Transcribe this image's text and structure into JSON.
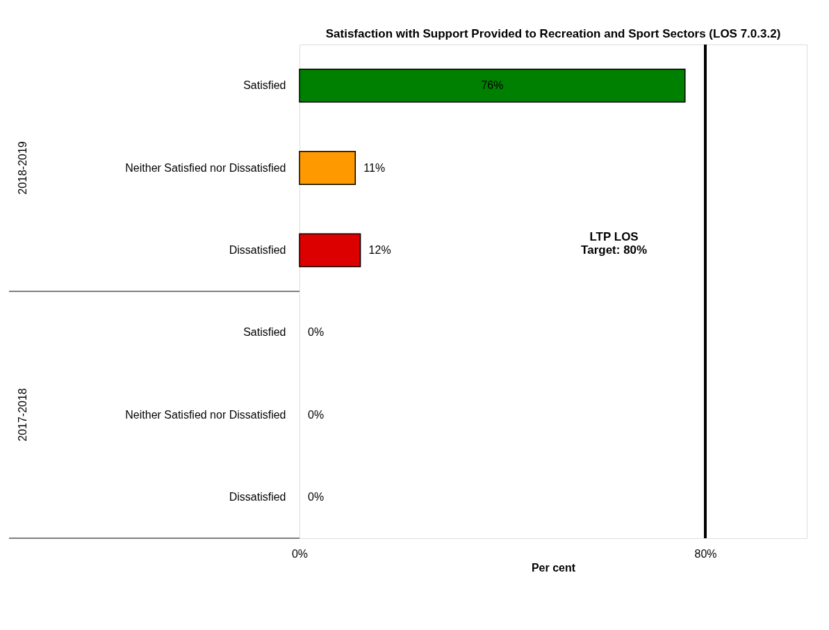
{
  "chart_data": {
    "type": "bar",
    "orientation": "horizontal",
    "title": "Satisfaction with Support Provided to Recreation and Sport Sectors (LOS 7.0.3.2)",
    "xlabel": "Per cent",
    "categories": [
      "Satisfied",
      "Neither Satisfied nor Dissatisfied",
      "Dissatisfied",
      "Satisfied",
      "Neither Satisfied nor Dissatisfied",
      "Dissatisfied"
    ],
    "values": [
      76,
      11,
      12,
      0,
      0,
      0
    ],
    "colors": [
      "#008000",
      "#ff9900",
      "#dd0000",
      "#008000",
      "#ff9900",
      "#dd0000"
    ],
    "value_labels": [
      "76%",
      "11%",
      "12%",
      "0%",
      "0%",
      "0%"
    ],
    "annotations": [
      "2018-2019",
      "2017-2018"
    ],
    "xlim": [
      0,
      100
    ],
    "xticks": [
      {
        "value": 0,
        "label": "0%"
      },
      {
        "value": 80,
        "label": "80%"
      }
    ],
    "ref_lines": [
      {
        "axis": "x",
        "value": 80,
        "label": "LTP LOS\nTarget: 80%"
      }
    ],
    "tick_labels": "xy"
  }
}
